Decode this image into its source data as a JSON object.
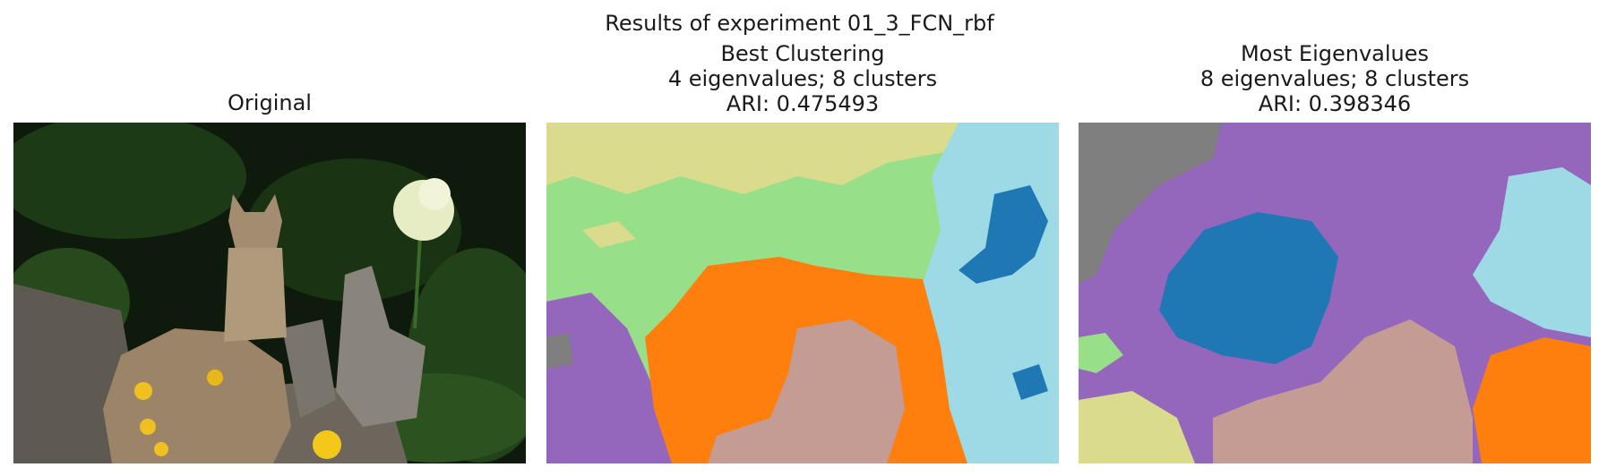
{
  "figure": {
    "suptitle": "Results of experiment 01_3_FCN_rbf"
  },
  "panels": [
    {
      "id": "original",
      "title_lines": [
        "Original"
      ],
      "content": "photo"
    },
    {
      "id": "best-clustering",
      "title_lines": [
        "Best Clustering",
        "4 eigenvalues; 8 clusters",
        "ARI: 0.475493"
      ]
    },
    {
      "id": "most-eigenvalues",
      "title_lines": [
        "Most Eigenvalues",
        "8 eigenvalues; 8 clusters",
        "ARI: 0.398346"
      ]
    }
  ],
  "palette": {
    "green": "#98df8a",
    "khaki": "#dbdb8d",
    "light_blue": "#9edae5",
    "blue": "#1f77b4",
    "orange": "#ff7f0e",
    "purple": "#9467bd",
    "tan": "#c49c94",
    "gray": "#7f7f7f"
  }
}
